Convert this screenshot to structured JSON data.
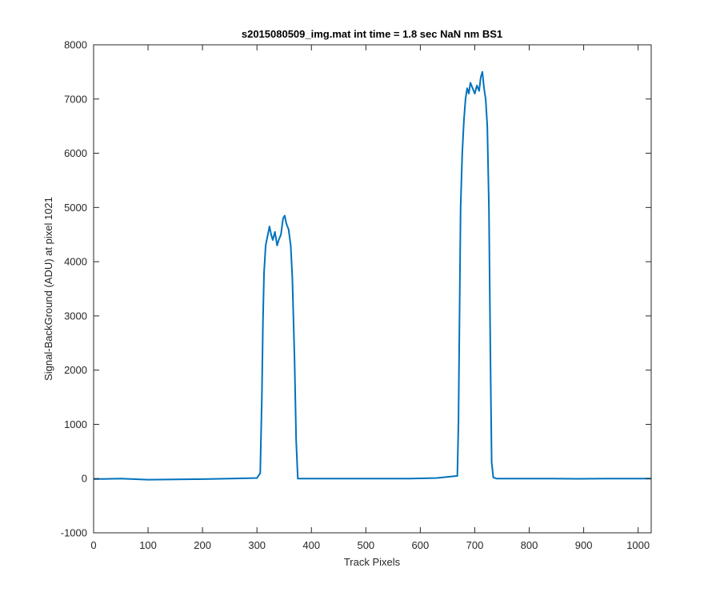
{
  "chart_data": {
    "type": "line",
    "title": "s2015080509_img.mat int time = 1.8 sec  NaN nm BS1",
    "xlabel": "Track Pixels",
    "ylabel": "Signal-BackGround (ADU) at pixel 1021",
    "xlim": [
      0,
      1024
    ],
    "ylim": [
      -1000,
      8000
    ],
    "xticks": [
      0,
      100,
      200,
      300,
      400,
      500,
      600,
      700,
      800,
      900,
      1000
    ],
    "yticks": [
      -1000,
      0,
      1000,
      2000,
      3000,
      4000,
      5000,
      6000,
      7000,
      8000
    ],
    "grid": false,
    "line_color": "#0072BD",
    "series": [
      {
        "x": [
          0,
          50,
          100,
          150,
          200,
          250,
          300,
          306,
          309,
          311,
          313,
          316,
          320,
          323,
          326,
          329,
          333,
          337,
          340,
          344,
          348,
          351,
          354,
          358,
          362,
          365,
          369,
          372,
          375,
          380,
          430,
          480,
          530,
          580,
          630,
          668,
          670,
          672,
          674,
          677,
          680,
          683,
          686,
          689,
          692,
          696,
          700,
          704,
          708,
          711,
          714,
          717,
          720,
          723,
          726,
          729,
          731,
          734,
          740,
          790,
          840,
          890,
          940,
          990,
          1024
        ],
        "y": [
          -10,
          0,
          -20,
          -15,
          -10,
          0,
          10,
          100,
          1500,
          2900,
          3800,
          4300,
          4500,
          4650,
          4500,
          4400,
          4550,
          4300,
          4400,
          4500,
          4800,
          4850,
          4700,
          4600,
          4300,
          3700,
          2200,
          700,
          0,
          0,
          0,
          0,
          0,
          0,
          10,
          50,
          1000,
          3000,
          5000,
          6000,
          6600,
          7000,
          7200,
          7100,
          7300,
          7200,
          7100,
          7250,
          7150,
          7400,
          7500,
          7200,
          7000,
          6500,
          5000,
          2000,
          300,
          20,
          0,
          0,
          0,
          -5,
          0,
          0,
          0
        ]
      }
    ]
  }
}
